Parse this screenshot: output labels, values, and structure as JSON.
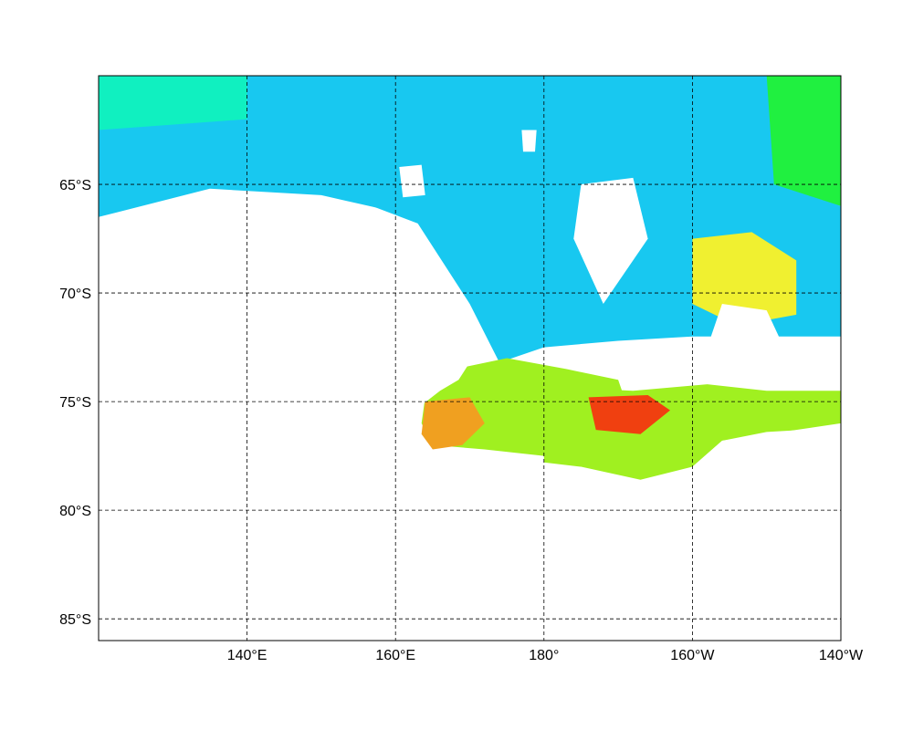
{
  "map": {
    "projection": "equirectangular",
    "lon_range": [
      120,
      220
    ],
    "lat_range": [
      -86,
      -60
    ],
    "frame_visible": true,
    "graticule": {
      "style": "dashed",
      "meridians": [
        140,
        160,
        180,
        200,
        220
      ],
      "parallels": [
        -65,
        -70,
        -75,
        -80,
        -85
      ]
    },
    "lat_tick_labels": [
      {
        "lat": -65,
        "label": "65°S"
      },
      {
        "lat": -70,
        "label": "70°S"
      },
      {
        "lat": -75,
        "label": "75°S"
      },
      {
        "lat": -80,
        "label": "80°S"
      },
      {
        "lat": -85,
        "label": "85°S"
      }
    ],
    "lon_tick_labels": [
      {
        "lon": 140,
        "label": "140°E"
      },
      {
        "lon": 160,
        "label": "160°E"
      },
      {
        "lon": 180,
        "label": "180°"
      },
      {
        "lon": 200,
        "label": "160°W"
      },
      {
        "lon": 220,
        "label": "140°W"
      }
    ],
    "colormap": [
      "#1030e8",
      "#1e8cf0",
      "#18c8f0",
      "#10f0c0",
      "#20f040",
      "#a0f020",
      "#f0f030",
      "#f0a020",
      "#f04010",
      "#c00000"
    ],
    "no_data_color": "#ffffff",
    "field_regions": [
      {
        "name": "ocean-north-band",
        "polygon": [
          [
            120,
            -60
          ],
          [
            220,
            -60
          ],
          [
            220,
            -66
          ],
          [
            200,
            -66.5
          ],
          [
            180,
            -66
          ],
          [
            163,
            -66.5
          ],
          [
            150,
            -65.5
          ],
          [
            135,
            -65.2
          ],
          [
            120,
            -66.5
          ]
        ],
        "level": 2
      },
      {
        "name": "ross-sea-west-coast",
        "polygon": [
          [
            153,
            -65.5
          ],
          [
            163,
            -66.8
          ],
          [
            170,
            -70.5
          ],
          [
            174,
            -73.2
          ],
          [
            180,
            -72.5
          ],
          [
            190,
            -72.2
          ],
          [
            200,
            -72
          ],
          [
            220,
            -72
          ],
          [
            220,
            -66
          ],
          [
            180,
            -66
          ]
        ],
        "level": 2
      },
      {
        "name": "ross-sea-central-shelf",
        "polygon": [
          [
            168,
            -73.5
          ],
          [
            175,
            -73
          ],
          [
            183,
            -73.5
          ],
          [
            190,
            -74
          ],
          [
            192,
            -76
          ],
          [
            186,
            -77
          ],
          [
            180,
            -77.5
          ],
          [
            172,
            -77.2
          ],
          [
            165,
            -77
          ],
          [
            163.5,
            -76
          ],
          [
            164,
            -74.8
          ]
        ],
        "level": 5
      },
      {
        "name": "ross-ice-shelf-front",
        "polygon": [
          [
            180,
            -74.3
          ],
          [
            192,
            -74.5
          ],
          [
            202,
            -74.2
          ],
          [
            210,
            -74.5
          ],
          [
            220,
            -74.5
          ],
          [
            220,
            -76
          ],
          [
            204,
            -76.8
          ],
          [
            200,
            -78
          ],
          [
            193,
            -78.6
          ],
          [
            185,
            -78
          ],
          [
            180,
            -77.8
          ]
        ],
        "level": 5
      },
      {
        "name": "ross-sea-hotspot-west",
        "polygon": [
          [
            164,
            -75
          ],
          [
            170,
            -74.8
          ],
          [
            172,
            -76
          ],
          [
            169,
            -77
          ],
          [
            165,
            -77.2
          ],
          [
            163.5,
            -76.5
          ]
        ],
        "level": 7
      },
      {
        "name": "ross-sea-hotspot-east",
        "polygon": [
          [
            186,
            -74.8
          ],
          [
            194,
            -74.7
          ],
          [
            197,
            -75.4
          ],
          [
            193,
            -76.5
          ],
          [
            187,
            -76.3
          ]
        ],
        "level": 8
      },
      {
        "name": "eastern-warm-patch",
        "polygon": [
          [
            200,
            -67.5
          ],
          [
            208,
            -67.2
          ],
          [
            214,
            -68.5
          ],
          [
            214,
            -71
          ],
          [
            206,
            -71.5
          ],
          [
            200,
            -70.5
          ]
        ],
        "level": 6
      },
      {
        "name": "western-coastal-green",
        "polygon": [
          [
            120,
            -60
          ],
          [
            140,
            -60
          ],
          [
            140,
            -62
          ],
          [
            120,
            -62.5
          ]
        ],
        "level": 3
      },
      {
        "name": "far-east-green",
        "polygon": [
          [
            210,
            -60
          ],
          [
            220,
            -60
          ],
          [
            220,
            -66
          ],
          [
            211,
            -65
          ]
        ],
        "level": 4
      },
      {
        "name": "balleny-patch",
        "polygon": [
          [
            143.5,
            -66.1
          ],
          [
            146.5,
            -66.1
          ],
          [
            146.5,
            -67.2
          ],
          [
            143.5,
            -67.2
          ]
        ],
        "level": 7
      }
    ],
    "no_data_regions": [
      {
        "name": "antarctic-continent",
        "polygon": [
          [
            120,
            -67
          ],
          [
            128,
            -66.8
          ],
          [
            135,
            -65.3
          ],
          [
            142,
            -65.5
          ],
          [
            150,
            -65.7
          ],
          [
            156,
            -66.2
          ],
          [
            160,
            -66.8
          ],
          [
            161.5,
            -68
          ],
          [
            162,
            -69.5
          ],
          [
            165,
            -70.5
          ],
          [
            168,
            -72.3
          ],
          [
            170,
            -73.2
          ],
          [
            168.5,
            -74
          ],
          [
            166,
            -74.5
          ],
          [
            163,
            -75.3
          ],
          [
            163,
            -77
          ],
          [
            165,
            -78
          ],
          [
            180,
            -78.5
          ],
          [
            192,
            -79
          ],
          [
            200,
            -78
          ],
          [
            204,
            -76.8
          ],
          [
            210,
            -76.4
          ],
          [
            220,
            -76.2
          ],
          [
            220,
            -86
          ],
          [
            120,
            -86
          ]
        ]
      },
      {
        "name": "sea-ice-gap-1",
        "polygon": [
          [
            185,
            -65
          ],
          [
            192,
            -64.7
          ],
          [
            194,
            -67.5
          ],
          [
            188,
            -70.5
          ],
          [
            184,
            -67.5
          ]
        ]
      },
      {
        "name": "sea-ice-gap-2",
        "polygon": [
          [
            204,
            -70.5
          ],
          [
            210,
            -70.8
          ],
          [
            213,
            -73
          ],
          [
            208,
            -74
          ],
          [
            202,
            -72.5
          ]
        ]
      },
      {
        "name": "sea-ice-gap-3",
        "polygon": [
          [
            160.5,
            -64.2
          ],
          [
            163.5,
            -64.1
          ],
          [
            164,
            -65.5
          ],
          [
            161,
            -65.6
          ]
        ]
      },
      {
        "name": "sea-ice-gap-4",
        "polygon": [
          [
            177,
            -62.5
          ],
          [
            179,
            -62.5
          ],
          [
            178.8,
            -63.5
          ],
          [
            177.2,
            -63.5
          ]
        ]
      }
    ]
  }
}
